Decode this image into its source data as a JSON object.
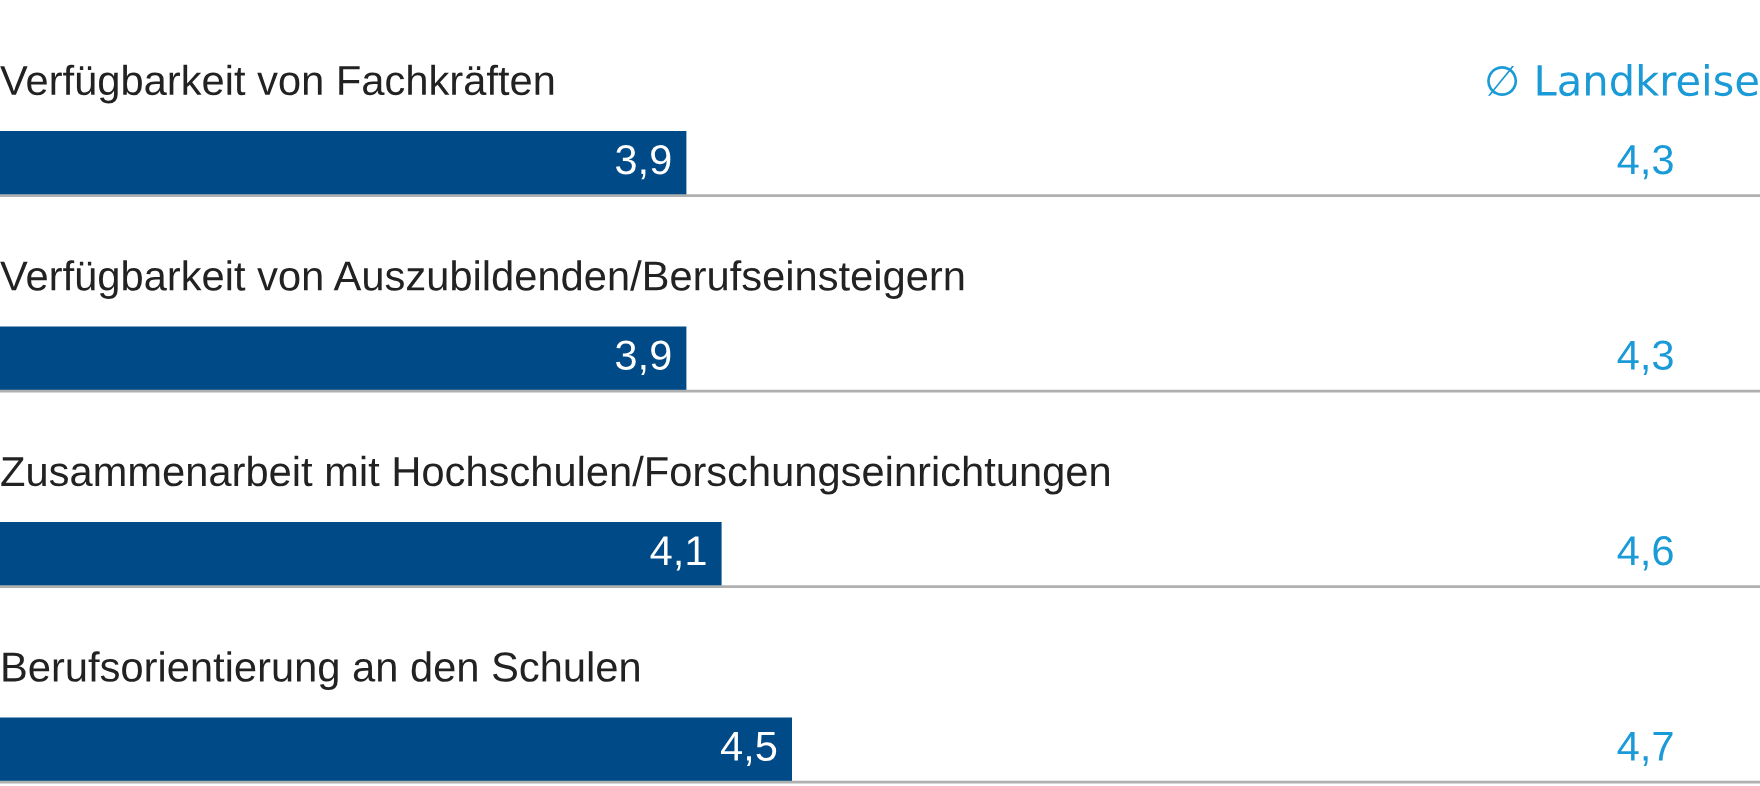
{
  "chart_data": {
    "type": "bar",
    "orientation": "horizontal",
    "categories": [
      "Verfügbarkeit von Fachkräften",
      "Verfügbarkeit von Auszubildenden/Berufseinsteigern",
      "Zusammenarbeit mit Hochschulen/Forschungseinrichtungen",
      "Berufsorientierung an den Schulen"
    ],
    "xlim": [
      0,
      10
    ],
    "series": [
      {
        "color": "#004b87",
        "values": [
          3.9,
          3.9,
          4.1,
          4.5
        ],
        "value_labels": [
          "3,9",
          "3,9",
          "4,1",
          "4,5"
        ]
      }
    ],
    "annotations": [
      "∅ Landkreise",
      "4,3",
      "4,3",
      "4,6",
      "4,7"
    ]
  }
}
